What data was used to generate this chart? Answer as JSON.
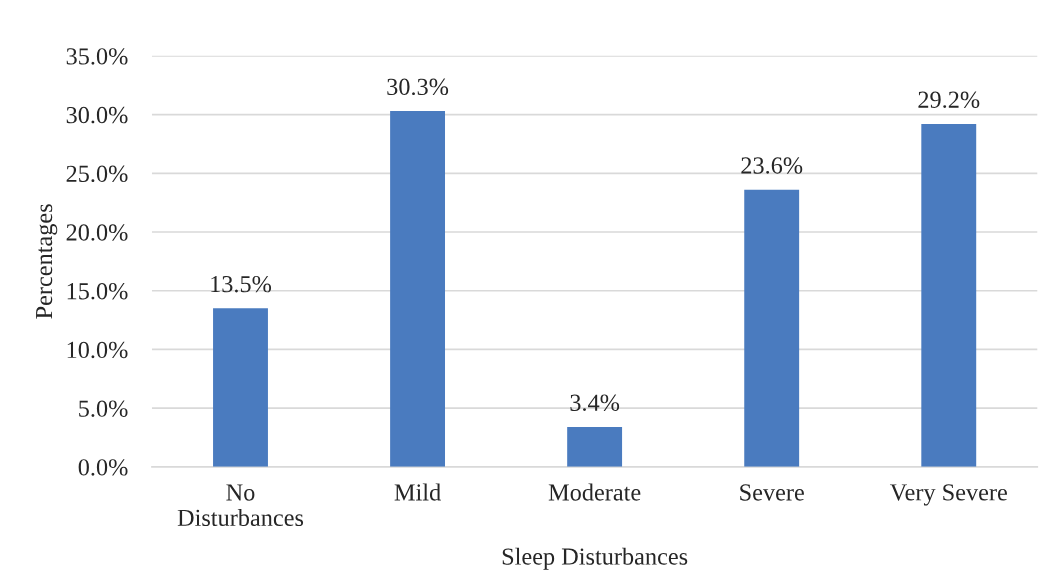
{
  "chart_data": {
    "type": "bar",
    "xlabel": "Sleep Disturbances",
    "ylabel": "Percentages",
    "categories": [
      "No\nDisturbances",
      "Mild",
      "Moderate",
      "Severe",
      "Very Severe"
    ],
    "values": [
      13.5,
      30.3,
      3.4,
      23.6,
      29.2
    ],
    "value_labels": [
      "13.5%",
      "30.3%",
      "3.4%",
      "23.6%",
      "29.2%"
    ],
    "color": "#4a7bbf",
    "ylim": [
      0,
      35
    ],
    "yticks": [
      {
        "value": 0,
        "label": "0.0%"
      },
      {
        "value": 5,
        "label": "5.0%"
      },
      {
        "value": 10,
        "label": "10.0%"
      },
      {
        "value": 15,
        "label": "15.0%"
      },
      {
        "value": 20,
        "label": "20.0%"
      },
      {
        "value": 25,
        "label": "25.0%"
      },
      {
        "value": 30,
        "label": "30.0%"
      },
      {
        "value": 35,
        "label": "35.0%"
      }
    ],
    "grid": "y",
    "legend": false
  }
}
